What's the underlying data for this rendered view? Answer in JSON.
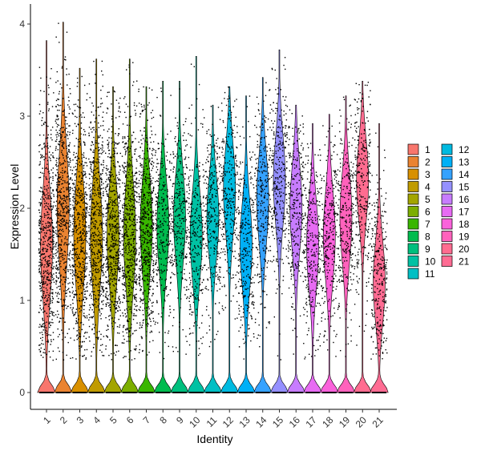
{
  "chart_data": {
    "type": "violin",
    "xlabel": "Identity",
    "ylabel": "Expression Level",
    "ylim": [
      0,
      4.1
    ],
    "y_ticks": [
      0,
      1,
      2,
      3,
      4
    ],
    "grid": false,
    "legend_position": "right",
    "legend_columns": 2,
    "points_shown": true,
    "point_color": "#000000",
    "categories": [
      "1",
      "2",
      "3",
      "4",
      "5",
      "6",
      "7",
      "8",
      "9",
      "10",
      "11",
      "12",
      "13",
      "14",
      "15",
      "16",
      "17",
      "18",
      "19",
      "20",
      "21"
    ],
    "colors": [
      "#F8766D",
      "#EA8331",
      "#D89000",
      "#C09B00",
      "#A3A500",
      "#7CAE00",
      "#39B600",
      "#00BB4E",
      "#00BF7D",
      "#00C1A3",
      "#00BFC4",
      "#00BAE0",
      "#00B0F6",
      "#35A2FF",
      "#9590FF",
      "#C77CFF",
      "#E76BF3",
      "#FA62DB",
      "#FF62BC",
      "#FF6C90",
      "#FF6C93"
    ],
    "series": [
      {
        "name": "1",
        "top_value": 3.82,
        "mode_value": 1.6,
        "spread": 0.65
      },
      {
        "name": "2",
        "top_value": 4.02,
        "mode_value": 2.0,
        "spread": 0.7
      },
      {
        "name": "3",
        "top_value": 3.52,
        "mode_value": 1.7,
        "spread": 0.65
      },
      {
        "name": "4",
        "top_value": 3.62,
        "mode_value": 1.7,
        "spread": 0.65
      },
      {
        "name": "5",
        "top_value": 3.32,
        "mode_value": 1.7,
        "spread": 0.6
      },
      {
        "name": "6",
        "top_value": 3.62,
        "mode_value": 1.7,
        "spread": 0.65
      },
      {
        "name": "7",
        "top_value": 3.32,
        "mode_value": 1.8,
        "spread": 0.6
      },
      {
        "name": "8",
        "top_value": 3.38,
        "mode_value": 1.8,
        "spread": 0.55
      },
      {
        "name": "9",
        "top_value": 3.38,
        "mode_value": 1.9,
        "spread": 0.55
      },
      {
        "name": "10",
        "top_value": 3.65,
        "mode_value": 1.7,
        "spread": 0.55
      },
      {
        "name": "11",
        "top_value": 3.12,
        "mode_value": 1.9,
        "spread": 0.5
      },
      {
        "name": "12",
        "top_value": 3.32,
        "mode_value": 2.2,
        "spread": 0.55
      },
      {
        "name": "13",
        "top_value": 3.22,
        "mode_value": 1.6,
        "spread": 0.55
      },
      {
        "name": "14",
        "top_value": 3.42,
        "mode_value": 2.1,
        "spread": 0.55
      },
      {
        "name": "15",
        "top_value": 3.72,
        "mode_value": 2.3,
        "spread": 0.55
      },
      {
        "name": "16",
        "top_value": 3.12,
        "mode_value": 2.0,
        "spread": 0.55
      },
      {
        "name": "17",
        "top_value": 2.92,
        "mode_value": 1.6,
        "spread": 0.55
      },
      {
        "name": "18",
        "top_value": 3.02,
        "mode_value": 1.7,
        "spread": 0.55
      },
      {
        "name": "19",
        "top_value": 3.22,
        "mode_value": 1.9,
        "spread": 0.55
      },
      {
        "name": "20",
        "top_value": 3.38,
        "mode_value": 2.3,
        "spread": 0.5
      },
      {
        "name": "21",
        "top_value": 2.92,
        "mode_value": 1.2,
        "spread": 0.5
      }
    ]
  }
}
